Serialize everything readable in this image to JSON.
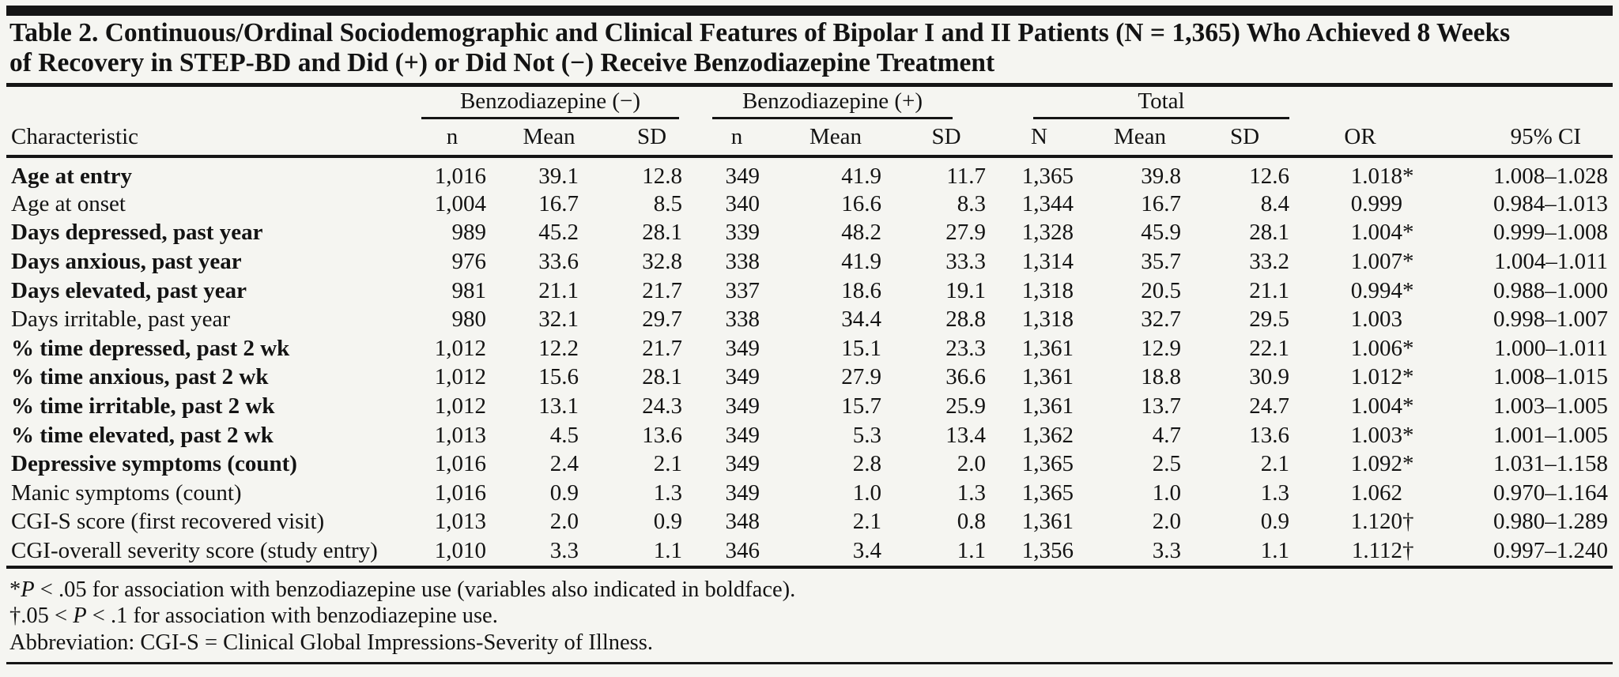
{
  "colors": {
    "background": "#f5f5f1",
    "rule": "#151515",
    "text": "#131313"
  },
  "title": {
    "line1": "Table 2. Continuous/Ordinal Sociodemographic and Clinical Features of Bipolar I and II Patients (N = 1,365) Who Achieved 8 Weeks",
    "line2": "of Recovery in STEP-BD and Did (+) or Did Not (−) Receive Benzodiazepine Treatment"
  },
  "table": {
    "group_headers": {
      "benzo_minus": "Benzodiazepine (−)",
      "benzo_plus": "Benzodiazepine (+)",
      "total": "Total"
    },
    "characteristic_header": "Characteristic",
    "sub_headers": [
      "n",
      "Mean",
      "SD",
      "n",
      "Mean",
      "SD",
      "N",
      "Mean",
      "SD"
    ],
    "or_header": "OR",
    "ci_header": "95% CI",
    "rows": [
      {
        "label": "Age at entry",
        "bold": true,
        "cells": [
          "1,016",
          "39.1",
          "12.8",
          "349",
          "41.9",
          "11.7",
          "1,365",
          "39.8",
          "12.6"
        ],
        "or": "1.018",
        "or_marker": "*",
        "ci": "1.008–1.028"
      },
      {
        "label": "Age at onset",
        "bold": false,
        "cells": [
          "1,004",
          "16.7",
          "8.5",
          "340",
          "16.6",
          "8.3",
          "1,344",
          "16.7",
          "8.4"
        ],
        "or": "0.999",
        "or_marker": "",
        "ci": "0.984–1.013"
      },
      {
        "label": "Days depressed, past year",
        "bold": true,
        "cells": [
          "989",
          "45.2",
          "28.1",
          "339",
          "48.2",
          "27.9",
          "1,328",
          "45.9",
          "28.1"
        ],
        "or": "1.004",
        "or_marker": "*",
        "ci": "0.999–1.008"
      },
      {
        "label": "Days anxious, past year",
        "bold": true,
        "cells": [
          "976",
          "33.6",
          "32.8",
          "338",
          "41.9",
          "33.3",
          "1,314",
          "35.7",
          "33.2"
        ],
        "or": "1.007",
        "or_marker": "*",
        "ci": "1.004–1.011"
      },
      {
        "label": "Days elevated, past year",
        "bold": true,
        "cells": [
          "981",
          "21.1",
          "21.7",
          "337",
          "18.6",
          "19.1",
          "1,318",
          "20.5",
          "21.1"
        ],
        "or": "0.994",
        "or_marker": "*",
        "ci": "0.988–1.000"
      },
      {
        "label": "Days irritable, past year",
        "bold": false,
        "cells": [
          "980",
          "32.1",
          "29.7",
          "338",
          "34.4",
          "28.8",
          "1,318",
          "32.7",
          "29.5"
        ],
        "or": "1.003",
        "or_marker": "",
        "ci": "0.998–1.007"
      },
      {
        "label": "% time depressed, past 2 wk",
        "bold": true,
        "cells": [
          "1,012",
          "12.2",
          "21.7",
          "349",
          "15.1",
          "23.3",
          "1,361",
          "12.9",
          "22.1"
        ],
        "or": "1.006",
        "or_marker": "*",
        "ci": "1.000–1.011"
      },
      {
        "label": "% time anxious, past 2 wk",
        "bold": true,
        "cells": [
          "1,012",
          "15.6",
          "28.1",
          "349",
          "27.9",
          "36.6",
          "1,361",
          "18.8",
          "30.9"
        ],
        "or": "1.012",
        "or_marker": "*",
        "ci": "1.008–1.015"
      },
      {
        "label": "% time irritable, past 2 wk",
        "bold": true,
        "cells": [
          "1,012",
          "13.1",
          "24.3",
          "349",
          "15.7",
          "25.9",
          "1,361",
          "13.7",
          "24.7"
        ],
        "or": "1.004",
        "or_marker": "*",
        "ci": "1.003–1.005"
      },
      {
        "label": "% time elevated, past 2 wk",
        "bold": true,
        "cells": [
          "1,013",
          "4.5",
          "13.6",
          "349",
          "5.3",
          "13.4",
          "1,362",
          "4.7",
          "13.6"
        ],
        "or": "1.003",
        "or_marker": "*",
        "ci": "1.001–1.005"
      },
      {
        "label": "Depressive symptoms (count)",
        "bold": true,
        "cells": [
          "1,016",
          "2.4",
          "2.1",
          "349",
          "2.8",
          "2.0",
          "1,365",
          "2.5",
          "2.1"
        ],
        "or": "1.092",
        "or_marker": "*",
        "ci": "1.031–1.158"
      },
      {
        "label": "Manic symptoms (count)",
        "bold": false,
        "cells": [
          "1,016",
          "0.9",
          "1.3",
          "349",
          "1.0",
          "1.3",
          "1,365",
          "1.0",
          "1.3"
        ],
        "or": "1.062",
        "or_marker": "",
        "ci": "0.970–1.164"
      },
      {
        "label": "CGI-S score (first recovered visit)",
        "bold": false,
        "cells": [
          "1,013",
          "2.0",
          "0.9",
          "348",
          "2.1",
          "0.8",
          "1,361",
          "2.0",
          "0.9"
        ],
        "or": "1.120",
        "or_marker": "†",
        "ci": "0.980–1.289"
      },
      {
        "label": "CGI-overall severity score (study entry)",
        "bold": false,
        "cells": [
          "1,010",
          "3.3",
          "1.1",
          "346",
          "3.4",
          "1.1",
          "1,356",
          "3.3",
          "1.1"
        ],
        "or": "1.112",
        "or_marker": "†",
        "ci": "0.997–1.240"
      }
    ]
  },
  "footnotes": [
    {
      "parts": [
        {
          "t": "*"
        },
        {
          "t": "P",
          "i": true
        },
        {
          "t": " < .05 for association with benzodiazepine use (variables also indicated in boldface)."
        }
      ]
    },
    {
      "parts": [
        {
          "t": "†.05 < "
        },
        {
          "t": "P",
          "i": true
        },
        {
          "t": " < .1 for association with benzodiazepine use."
        }
      ]
    },
    {
      "parts": [
        {
          "t": "Abbreviation: CGI-S = Clinical Global Impressions-Severity of Illness."
        }
      ]
    }
  ]
}
